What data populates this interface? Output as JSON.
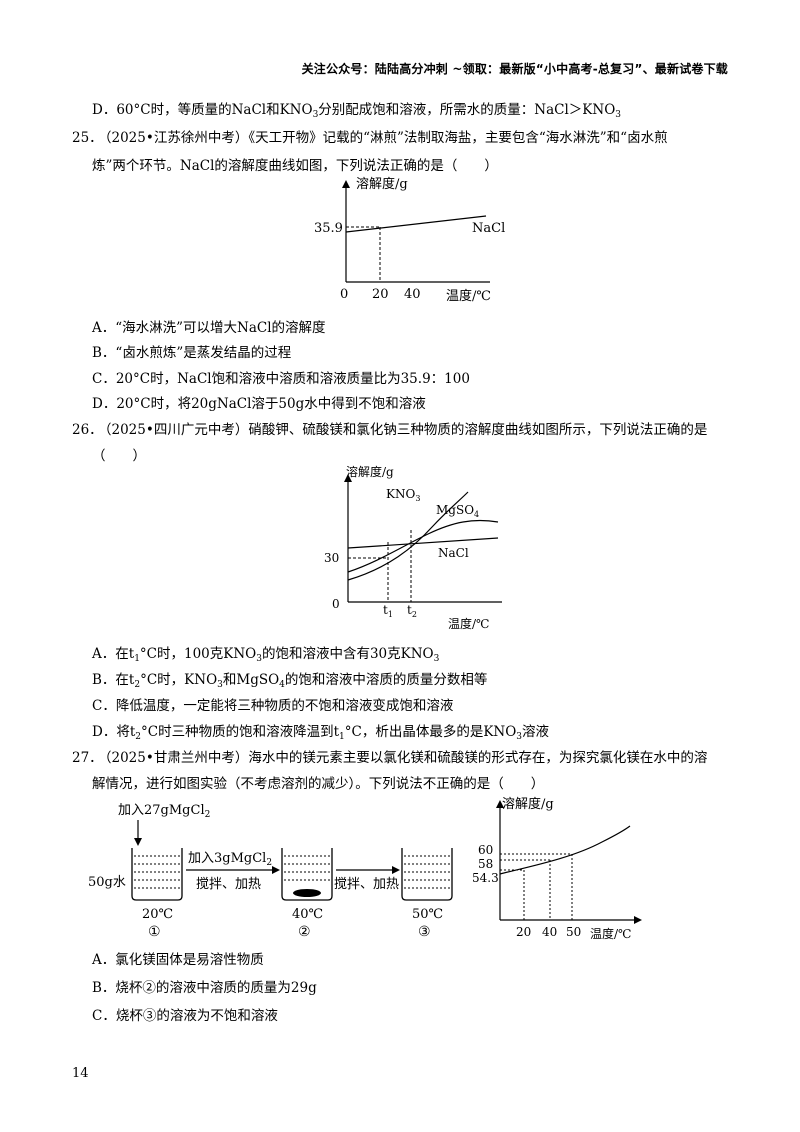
{
  "header": "关注公众号：陆陆高分冲刺 ~领取：最新版“小中高考-总复习”、最新试卷下载",
  "prev_option_d": {
    "a": "D．60°C时，等质量的NaCl和KNO",
    "sub": "3",
    "b": "分别配成饱和溶液，所需水的质量：NaCl＞KNO",
    "sub2": "3"
  },
  "q25": {
    "num": "25．",
    "line1": "（2025•江苏徐州中考）《天工开物》记载的“淋煎”法制取海盐，主要包含“海水淋洗”和“卤水煎",
    "line2": "炼”两个环节。NaCl的溶解度曲线如图，下列说法正确的是（　　）",
    "chart": {
      "ylabel": "溶解度/g",
      "xlabel": "温度/℃",
      "series": "NaCl",
      "y_tick": "35.9",
      "x_ticks": [
        "0",
        "20",
        "40"
      ]
    },
    "options": [
      "A．“海水淋洗”可以增大NaCl的溶解度",
      "B．“卤水煎炼”是蒸发结晶的过程",
      "C．20°C时，NaCl饱和溶液中溶质和溶液质量比为35.9：100",
      "D．20°C时，将20gNaCl溶于50g水中得到不饱和溶液"
    ]
  },
  "q26": {
    "num": "26．",
    "line1": "（2025•四川广元中考）硝酸钾、硫酸镁和氯化钠三种物质的溶解度曲线如图所示，下列说法正确的是",
    "line2": "（　　）",
    "chart": {
      "ylabel": "溶解度/g",
      "xlabel": "温度/℃",
      "y_tick": "30",
      "x_origin": "0",
      "t1": "t",
      "t1sub": "1",
      "t2": "t",
      "t2sub": "2",
      "kno3": "KNO",
      "kno3sub": "3",
      "mgso4": "MgSO",
      "mgso4sub": "4",
      "nacl": "NaCl"
    },
    "options": {
      "A": {
        "a": "A．在t",
        "s1": "1",
        "b": "°C时，100克KNO",
        "s2": "3",
        "c": "的饱和溶液中含有30克KNO",
        "s3": "3"
      },
      "B": {
        "a": "B．在t",
        "s1": "2",
        "b": "°C时，KNO",
        "s2": "3",
        "c": "和MgSO",
        "s3": "4",
        "d": "的饱和溶液中溶质的质量分数相等"
      },
      "C": "C．降低温度，一定能将三种物质的不饱和溶液变成饱和溶液",
      "D": {
        "a": "D．将t",
        "s1": "2",
        "b": "°C时三种物质的饱和溶液降温到t",
        "s2": "1",
        "c": "°C，析出晶体最多的是KNO",
        "s3": "3",
        "d": "溶液"
      }
    }
  },
  "q27": {
    "num": "27．",
    "line1": "（2025•甘肃兰州中考）海水中的镁元素主要以氯化镁和硫酸镁的形式存在，为探究氯化镁在水中的溶",
    "line2": "解情况，进行如图实验（不考虑溶剂的减少）。下列说法不正确的是（　　）",
    "exp": {
      "add1": "加入27gMgCl",
      "add1sub": "2",
      "add2": "加入3gMgCl",
      "add2sub": "2",
      "water": "50g水",
      "stir1": "搅拌、加热",
      "stir2": "搅拌、加热",
      "t1": "20℃",
      "t2": "40℃",
      "t3": "50℃",
      "b1": "①",
      "b2": "②",
      "b3": "③"
    },
    "chart": {
      "ylabel": "溶解度/g",
      "xlabel": "温度/℃",
      "y_ticks": [
        "60",
        "58",
        "54.3"
      ],
      "x_ticks": [
        "20",
        "40",
        "50"
      ]
    },
    "options": [
      "A．氯化镁固体是易溶性物质",
      "B．烧杯②的溶液中溶质的质量为29g",
      "C．烧杯③的溶液为不饱和溶液"
    ]
  },
  "page_number": "14",
  "chart_data": [
    {
      "type": "line",
      "ylabel": "溶解度/g",
      "xlabel": "温度/℃",
      "series": [
        {
          "name": "NaCl",
          "x": [
            20
          ],
          "values": [
            35.9
          ]
        }
      ],
      "x_ticks": [
        0,
        20,
        40
      ]
    },
    {
      "type": "line",
      "ylabel": "溶解度/g",
      "xlabel": "温度/℃",
      "series": [
        {
          "name": "KNO3"
        },
        {
          "name": "MgSO4"
        },
        {
          "name": "NaCl"
        }
      ],
      "x_ticks": [
        "0",
        "t1",
        "t2"
      ],
      "y_ticks": [
        30
      ]
    },
    {
      "type": "line",
      "ylabel": "溶解度/g",
      "xlabel": "温度/℃",
      "x": [
        20,
        40,
        50
      ],
      "values": [
        54.3,
        58,
        60
      ]
    }
  ]
}
